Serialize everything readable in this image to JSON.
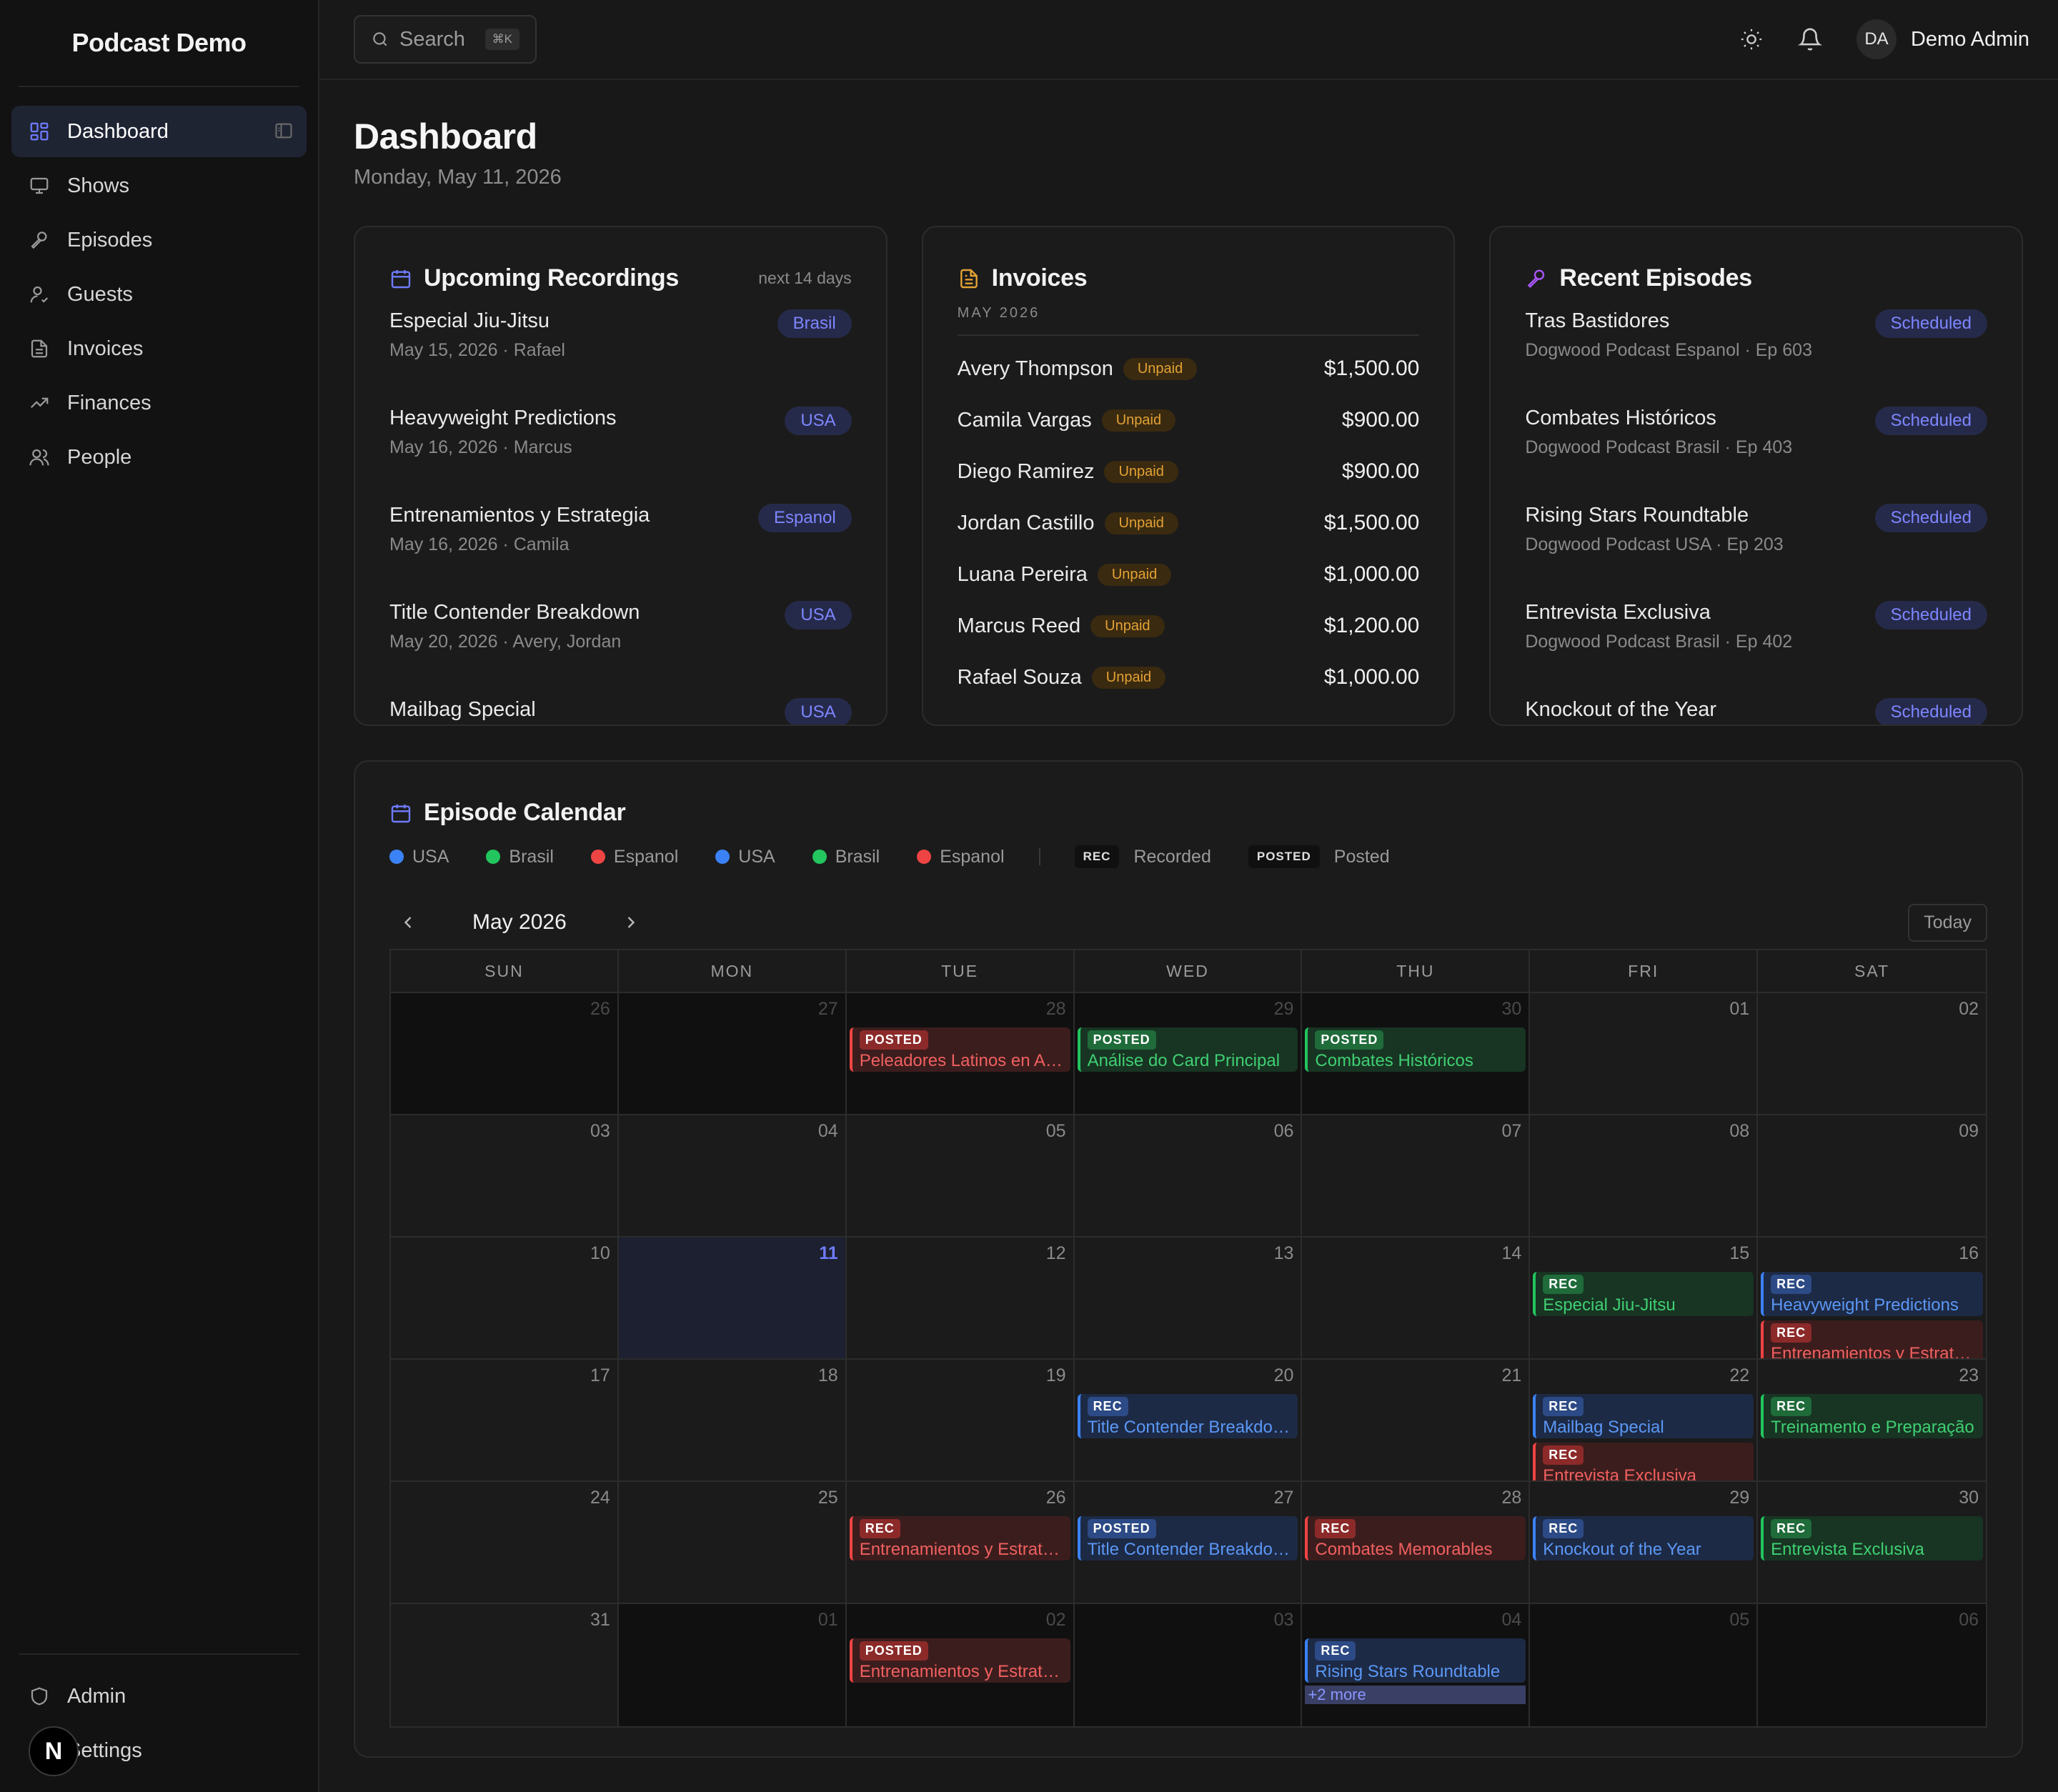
{
  "app": {
    "brand": "Podcast Demo"
  },
  "sidebar": {
    "items": [
      {
        "label": "Dashboard",
        "icon": "dashboard-icon",
        "active": true
      },
      {
        "label": "Shows",
        "icon": "monitor-icon"
      },
      {
        "label": "Episodes",
        "icon": "microphone-icon"
      },
      {
        "label": "Guests",
        "icon": "guest-icon"
      },
      {
        "label": "Invoices",
        "icon": "file-icon"
      },
      {
        "label": "Finances",
        "icon": "trending-up-icon"
      },
      {
        "label": "People",
        "icon": "users-icon"
      }
    ],
    "bottom": [
      {
        "label": "Admin",
        "icon": "shield-icon"
      },
      {
        "label": "Settings",
        "icon": "gear-icon"
      }
    ],
    "badge_letter": "N"
  },
  "topbar": {
    "search_placeholder": "Search",
    "search_kbd": "⌘K",
    "user_initials": "DA",
    "user_name": "Demo Admin"
  },
  "page": {
    "title": "Dashboard",
    "date": "Monday, May 11, 2026"
  },
  "upcoming": {
    "title": "Upcoming Recordings",
    "aux": "next 14 days",
    "items": [
      {
        "title": "Especial Jiu-Jitsu",
        "meta": "May 15, 2026 · Rafael",
        "tag": "Brasil"
      },
      {
        "title": "Heavyweight Predictions",
        "meta": "May 16, 2026 · Marcus",
        "tag": "USA"
      },
      {
        "title": "Entrenamientos y Estrategia",
        "meta": "May 16, 2026 · Camila",
        "tag": "Espanol"
      },
      {
        "title": "Title Contender Breakdown",
        "meta": "May 20, 2026 · Avery, Jordan",
        "tag": "USA"
      },
      {
        "title": "Mailbag Special",
        "meta": "",
        "tag": "USA"
      }
    ]
  },
  "invoices": {
    "title": "Invoices",
    "month": "MAY 2026",
    "status_label": "Unpaid",
    "rows": [
      {
        "name": "Avery Thompson",
        "amount": "$1,500.00"
      },
      {
        "name": "Camila Vargas",
        "amount": "$900.00"
      },
      {
        "name": "Diego Ramirez",
        "amount": "$900.00"
      },
      {
        "name": "Jordan Castillo",
        "amount": "$1,500.00"
      },
      {
        "name": "Luana Pereira",
        "amount": "$1,000.00"
      },
      {
        "name": "Marcus Reed",
        "amount": "$1,200.00"
      },
      {
        "name": "Rafael Souza",
        "amount": "$1,000.00"
      }
    ]
  },
  "recent": {
    "title": "Recent Episodes",
    "items": [
      {
        "title": "Tras Bastidores",
        "meta": "Dogwood Podcast Espanol · Ep 603",
        "tag": "Scheduled"
      },
      {
        "title": "Combates Históricos",
        "meta": "Dogwood Podcast Brasil · Ep 403",
        "tag": "Scheduled"
      },
      {
        "title": "Rising Stars Roundtable",
        "meta": "Dogwood Podcast USA · Ep 203",
        "tag": "Scheduled"
      },
      {
        "title": "Entrevista Exclusiva",
        "meta": "Dogwood Podcast Brasil · Ep 402",
        "tag": "Scheduled"
      },
      {
        "title": "Knockout of the Year",
        "meta": "",
        "tag": "Scheduled"
      }
    ]
  },
  "calendar": {
    "title": "Episode Calendar",
    "legend": [
      {
        "label": "USA",
        "color": "#3b82f6"
      },
      {
        "label": "Brasil",
        "color": "#22c55e"
      },
      {
        "label": "Espanol",
        "color": "#ef4444"
      },
      {
        "label": "USA",
        "color": "#3b82f6"
      },
      {
        "label": "Brasil",
        "color": "#22c55e"
      },
      {
        "label": "Espanol",
        "color": "#ef4444"
      }
    ],
    "legend_status": [
      {
        "badge": "REC",
        "label": "Recorded"
      },
      {
        "badge": "POSTED",
        "label": "Posted"
      }
    ],
    "month_label": "May 2026",
    "today_label": "Today",
    "weekdays": [
      "SUN",
      "MON",
      "TUE",
      "WED",
      "THU",
      "FRI",
      "SAT"
    ],
    "weeks": [
      [
        {
          "d": "26",
          "out": true
        },
        {
          "d": "27",
          "out": true
        },
        {
          "d": "28",
          "out": true,
          "events": [
            {
              "b": "POSTED",
              "t": "Peleadores Latinos en Ascenso",
              "s": "espanol"
            }
          ]
        },
        {
          "d": "29",
          "out": true,
          "events": [
            {
              "b": "POSTED",
              "t": "Análise do Card Principal",
              "s": "brasil"
            }
          ]
        },
        {
          "d": "30",
          "out": true,
          "events": [
            {
              "b": "POSTED",
              "t": "Combates Históricos",
              "s": "brasil"
            }
          ]
        },
        {
          "d": "01"
        },
        {
          "d": "02"
        }
      ],
      [
        {
          "d": "03"
        },
        {
          "d": "04"
        },
        {
          "d": "05"
        },
        {
          "d": "06"
        },
        {
          "d": "07"
        },
        {
          "d": "08"
        },
        {
          "d": "09"
        }
      ],
      [
        {
          "d": "10"
        },
        {
          "d": "11",
          "today": true
        },
        {
          "d": "12"
        },
        {
          "d": "13"
        },
        {
          "d": "14"
        },
        {
          "d": "15",
          "events": [
            {
              "b": "REC",
              "t": "Especial Jiu-Jitsu",
              "s": "brasil"
            }
          ]
        },
        {
          "d": "16",
          "events": [
            {
              "b": "REC",
              "t": "Heavyweight Predictions",
              "s": "usa"
            },
            {
              "b": "REC",
              "t": "Entrenamientos y Estrategia",
              "s": "espanol"
            }
          ]
        }
      ],
      [
        {
          "d": "17"
        },
        {
          "d": "18"
        },
        {
          "d": "19"
        },
        {
          "d": "20",
          "events": [
            {
              "b": "REC",
              "t": "Title Contender Breakdown",
              "s": "usa"
            }
          ]
        },
        {
          "d": "21"
        },
        {
          "d": "22",
          "events": [
            {
              "b": "REC",
              "t": "Mailbag Special",
              "s": "usa"
            },
            {
              "b": "REC",
              "t": "Entrevista Exclusiva",
              "s": "espanol"
            }
          ]
        },
        {
          "d": "23",
          "events": [
            {
              "b": "REC",
              "t": "Treinamento e Preparação",
              "s": "brasil"
            }
          ]
        }
      ],
      [
        {
          "d": "24"
        },
        {
          "d": "25"
        },
        {
          "d": "26",
          "events": [
            {
              "b": "REC",
              "t": "Entrenamientos y Estrategia",
              "s": "espanol"
            }
          ]
        },
        {
          "d": "27",
          "events": [
            {
              "b": "POSTED",
              "t": "Title Contender Breakdown",
              "s": "usa"
            }
          ]
        },
        {
          "d": "28",
          "events": [
            {
              "b": "REC",
              "t": "Combates Memorables",
              "s": "espanol"
            }
          ]
        },
        {
          "d": "29",
          "events": [
            {
              "b": "REC",
              "t": "Knockout of the Year",
              "s": "usa"
            }
          ]
        },
        {
          "d": "30",
          "events": [
            {
              "b": "REC",
              "t": "Entrevista Exclusiva",
              "s": "brasil"
            }
          ]
        }
      ],
      [
        {
          "d": "31"
        },
        {
          "d": "01",
          "out": true
        },
        {
          "d": "02",
          "out": true,
          "events": [
            {
              "b": "POSTED",
              "t": "Entrenamientos y Estrategia",
              "s": "espanol"
            }
          ]
        },
        {
          "d": "03",
          "out": true
        },
        {
          "d": "04",
          "out": true,
          "events": [
            {
              "b": "REC",
              "t": "Rising Stars Roundtable",
              "s": "usa"
            }
          ],
          "more": "+2 more"
        },
        {
          "d": "05",
          "out": true
        },
        {
          "d": "06",
          "out": true
        }
      ]
    ]
  }
}
